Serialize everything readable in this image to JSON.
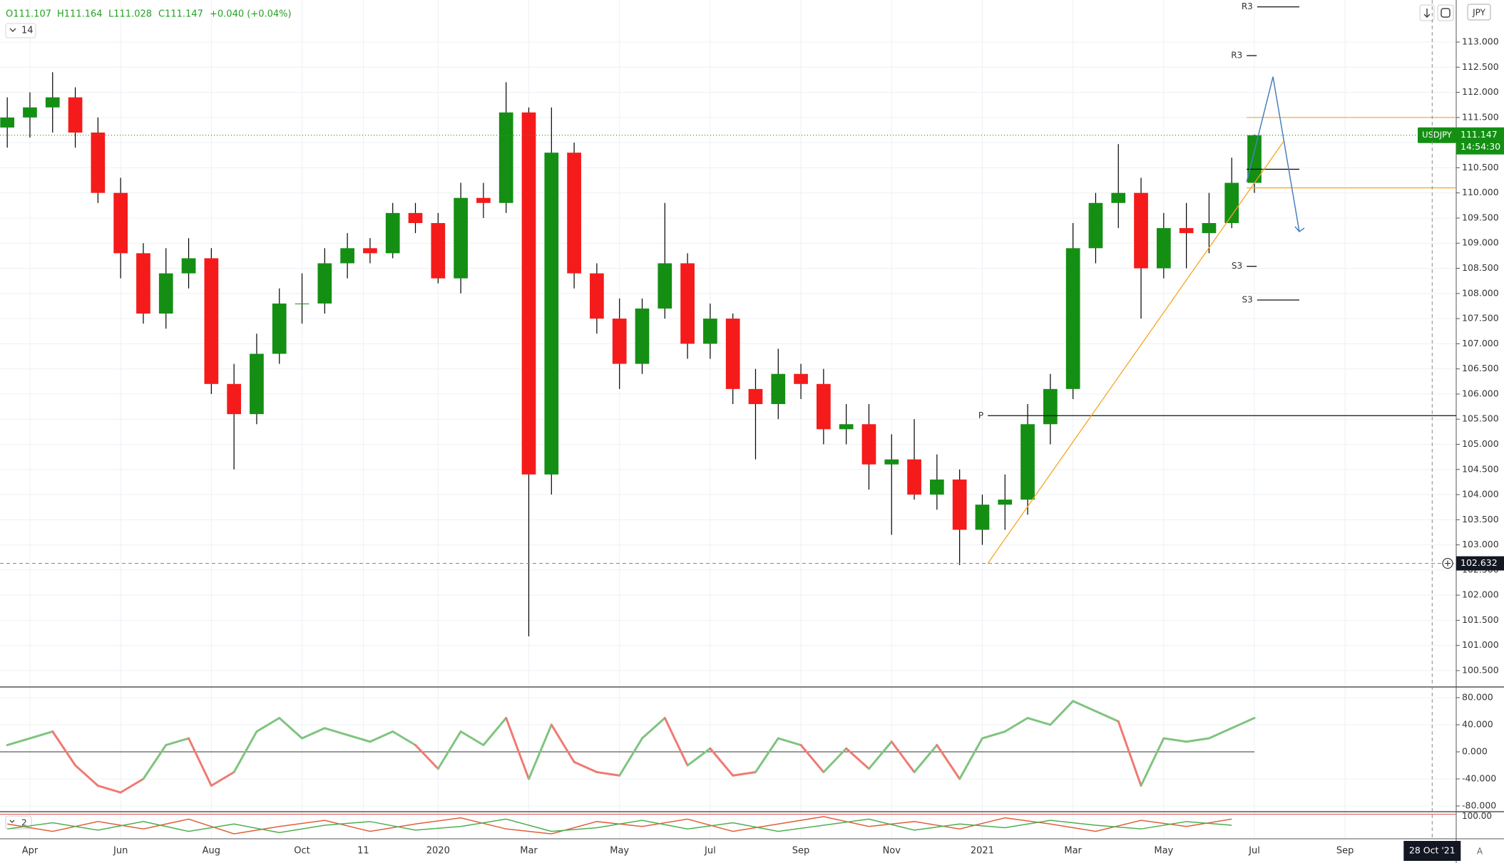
{
  "chart_data": {
    "type": "candlestick",
    "symbol": "USDJPY",
    "header": [
      "O111.107",
      "H111.164",
      "L111.028",
      "C111.147",
      "+0.040 (+0.04%)"
    ],
    "indicator_label": "14",
    "currency": "JPY",
    "scale_mode": "A",
    "up_color": "#148f14",
    "down_color": "#f51b1b",
    "x": [
      -0.5,
      0,
      0.5,
      1,
      1.5,
      2,
      2.5,
      3,
      3.5,
      4,
      4.5,
      5,
      5.5,
      6,
      6.5,
      7,
      7.5,
      8,
      8.5,
      9,
      9.5,
      10,
      10.5,
      11,
      11.5,
      12,
      12.5,
      13,
      13.5,
      14,
      14.5,
      15,
      15.5,
      16,
      16.5,
      17,
      17.5,
      18,
      18.5,
      19,
      19.5,
      20,
      20.5,
      21,
      21.5,
      22,
      22.5,
      23,
      23.5,
      24,
      24.5,
      25,
      25.5,
      26,
      26.5,
      27
    ],
    "open": [
      111.3,
      111.5,
      111.7,
      111.9,
      111.2,
      110.0,
      108.8,
      107.6,
      108.4,
      108.7,
      106.2,
      105.6,
      106.8,
      107.8,
      107.8,
      108.6,
      108.9,
      108.8,
      109.6,
      109.4,
      108.3,
      109.9,
      109.8,
      111.6,
      104.4,
      110.8,
      108.4,
      107.5,
      106.6,
      107.7,
      108.6,
      107.0,
      107.5,
      106.1,
      105.8,
      106.4,
      106.2,
      105.3,
      105.4,
      104.6,
      104.7,
      104.0,
      104.3,
      103.3,
      103.8,
      103.9,
      105.4,
      106.1,
      108.9,
      109.8,
      110.0,
      108.5,
      109.3,
      109.2,
      109.4,
      110.2
    ],
    "high": [
      111.9,
      112.0,
      112.4,
      112.1,
      111.5,
      110.3,
      109.0,
      108.9,
      109.1,
      108.9,
      106.6,
      107.2,
      108.1,
      108.4,
      108.9,
      109.2,
      109.1,
      109.8,
      109.8,
      109.6,
      110.2,
      110.2,
      112.2,
      111.7,
      111.7,
      111.0,
      108.6,
      107.9,
      107.9,
      109.8,
      108.8,
      107.8,
      107.6,
      106.5,
      106.9,
      106.6,
      106.5,
      105.8,
      105.8,
      105.2,
      105.5,
      104.8,
      104.5,
      104.0,
      104.4,
      105.8,
      106.4,
      109.4,
      110.0,
      110.97,
      110.3,
      109.6,
      109.8,
      110.0,
      110.7,
      111.16
    ],
    "low": [
      110.9,
      111.1,
      111.2,
      110.9,
      109.8,
      108.3,
      107.4,
      107.3,
      108.1,
      106.0,
      104.5,
      105.4,
      106.6,
      107.4,
      107.6,
      108.3,
      108.6,
      108.7,
      109.2,
      108.2,
      108.0,
      109.5,
      109.6,
      101.18,
      104.0,
      108.1,
      107.2,
      106.1,
      106.4,
      107.5,
      106.7,
      106.7,
      105.8,
      104.7,
      105.5,
      105.9,
      105.0,
      105.0,
      104.1,
      103.2,
      103.9,
      103.7,
      102.6,
      103.0,
      103.3,
      103.6,
      105.0,
      105.9,
      108.6,
      109.3,
      107.5,
      108.3,
      108.5,
      108.8,
      109.3,
      110.0
    ],
    "close": [
      111.5,
      111.7,
      111.9,
      111.2,
      110.0,
      108.8,
      107.6,
      108.4,
      108.7,
      106.2,
      105.6,
      106.8,
      107.8,
      107.8,
      108.6,
      108.9,
      108.8,
      109.6,
      109.4,
      108.3,
      109.9,
      109.8,
      111.6,
      104.4,
      110.8,
      108.4,
      107.5,
      106.6,
      107.7,
      108.6,
      107.0,
      107.5,
      106.1,
      105.8,
      106.4,
      106.2,
      105.3,
      105.4,
      104.6,
      104.7,
      104.0,
      104.3,
      103.3,
      103.8,
      103.9,
      105.4,
      106.1,
      108.9,
      109.8,
      110.0,
      108.5,
      109.3,
      109.2,
      109.4,
      110.2,
      111.147
    ],
    "xlim": [
      -0.66,
      31.45
    ],
    "xticks": [
      {
        "value": 0,
        "label": "Apr"
      },
      {
        "value": 2,
        "label": "Jun"
      },
      {
        "value": 4,
        "label": "Aug"
      },
      {
        "value": 6,
        "label": "Oct"
      },
      {
        "value": 7.35,
        "label": "11"
      },
      {
        "value": 9,
        "label": "2020"
      },
      {
        "value": 11,
        "label": "Mar"
      },
      {
        "value": 13,
        "label": "May"
      },
      {
        "value": 15,
        "label": "Jul"
      },
      {
        "value": 17,
        "label": "Sep"
      },
      {
        "value": 19,
        "label": "Nov"
      },
      {
        "value": 21,
        "label": "2021"
      },
      {
        "value": 23,
        "label": "Mar"
      },
      {
        "value": 25,
        "label": "May"
      },
      {
        "value": 27,
        "label": "Jul"
      },
      {
        "value": 29,
        "label": "Sep"
      }
    ],
    "crosshair_time": {
      "value": 30.92,
      "label": "28 Oct '21"
    },
    "ylim": [
      100.174,
      113.836
    ],
    "yticks": [
      {
        "value": 100.5,
        "label": "100.500"
      },
      {
        "value": 101,
        "label": "101.000"
      },
      {
        "value": 101.5,
        "label": "101.500"
      },
      {
        "value": 102,
        "label": "102.000"
      },
      {
        "value": 102.5,
        "label": "102.500"
      },
      {
        "value": 103,
        "label": "103.000"
      },
      {
        "value": 103.5,
        "label": "103.500"
      },
      {
        "value": 104,
        "label": "104.000"
      },
      {
        "value": 104.5,
        "label": "104.500"
      },
      {
        "value": 105,
        "label": "105.000"
      },
      {
        "value": 105.5,
        "label": "105.500"
      },
      {
        "value": 106,
        "label": "106.000"
      },
      {
        "value": 106.5,
        "label": "106.500"
      },
      {
        "value": 107,
        "label": "107.000"
      },
      {
        "value": 107.5,
        "label": "107.500"
      },
      {
        "value": 108,
        "label": "108.000"
      },
      {
        "value": 108.5,
        "label": "108.500"
      },
      {
        "value": 109,
        "label": "109.000"
      },
      {
        "value": 109.5,
        "label": "109.500"
      },
      {
        "value": 110,
        "label": "110.000"
      },
      {
        "value": 110.5,
        "label": "110.500"
      },
      {
        "value": 111,
        "label": "111.000"
      },
      {
        "value": 111.5,
        "label": "111.500"
      },
      {
        "value": 112,
        "label": "112.000"
      },
      {
        "value": 112.5,
        "label": "112.500"
      },
      {
        "value": 113,
        "label": "113.000"
      }
    ],
    "grid": true,
    "last_price": 111.147,
    "countdown": "14:54:30",
    "crosshair_price": 102.632,
    "pivots": [
      {
        "label": "R3",
        "value": 113.7,
        "x": [
          27.06,
          27.99
        ]
      },
      {
        "label": "R3",
        "value": 112.73,
        "x": [
          26.83,
          27.05
        ]
      },
      {
        "label": "S3",
        "value": 108.54,
        "x": [
          26.83,
          27.05
        ]
      },
      {
        "label": "S3",
        "value": 107.87,
        "x": [
          27.06,
          27.99
        ]
      },
      {
        "label": "P",
        "value": 105.57,
        "x": [
          21.12,
          31.45
        ]
      }
    ],
    "levels": [
      {
        "value": 111.5,
        "color": "#f5a623",
        "x": [
          26.83,
          31.45
        ]
      },
      {
        "value": 110.47,
        "color": "#000000",
        "x": [
          26.83,
          27.99
        ]
      },
      {
        "value": 110.1,
        "color": "#f5a623",
        "x": [
          26.83,
          31.45
        ]
      }
    ],
    "trendline": {
      "x": [
        21.12,
        27.64
      ],
      "y": [
        102.63,
        111.02
      ],
      "color": "#f5a623"
    },
    "projection": {
      "x": [
        26.83,
        27.41,
        27.99
      ],
      "y": [
        110.22,
        112.31,
        109.23
      ],
      "color": "#4a7fc0"
    },
    "oscillator": {
      "type": "line",
      "values": [
        10,
        20,
        30,
        -20,
        -50,
        -60,
        -40,
        10,
        20,
        -50,
        -30,
        30,
        50,
        20,
        35,
        25,
        15,
        30,
        10,
        -25,
        30,
        10,
        50,
        -40,
        40,
        -15,
        -30,
        -35,
        20,
        50,
        -20,
        5,
        -35,
        -30,
        20,
        10,
        -30,
        5,
        -25,
        15,
        -30,
        10,
        -40,
        20,
        30,
        50,
        40,
        75,
        60,
        45,
        -50,
        20,
        15,
        20,
        35,
        50
      ],
      "up_color": "#7fc47f",
      "down_color": "#ef7a72",
      "ylim": [
        -88.4,
        95.8
      ],
      "yticks": [
        {
          "value": 80,
          "label": "80.000"
        },
        {
          "value": 40,
          "label": "40.000"
        },
        {
          "value": 0,
          "label": "0.000"
        },
        {
          "value": -40,
          "label": "-40.000"
        },
        {
          "value": -80,
          "label": "-80.000"
        }
      ]
    },
    "stochastic": {
      "type": "line",
      "label": "2",
      "x": [
        -0.5,
        0.5,
        1.5,
        2.5,
        3.5,
        4.5,
        5.5,
        6.5,
        7.5,
        8.5,
        9.5,
        10.5,
        11.5,
        12.5,
        13.5,
        14.5,
        15.5,
        16.5,
        17.5,
        18.5,
        19.5,
        20.5,
        21.5,
        22.5,
        23.5,
        24.5,
        25.5,
        26.5
      ],
      "series": [
        {
          "color": "#e0603a",
          "values": [
            60,
            30,
            70,
            40,
            80,
            20,
            50,
            75,
            30,
            60,
            85,
            40,
            20,
            70,
            50,
            80,
            30,
            60,
            90,
            50,
            70,
            40,
            85,
            60,
            30,
            75,
            50,
            80
          ]
        },
        {
          "color": "#4caf50",
          "values": [
            40,
            65,
            35,
            70,
            30,
            60,
            25,
            55,
            70,
            35,
            50,
            80,
            30,
            45,
            75,
            40,
            65,
            30,
            55,
            80,
            35,
            60,
            45,
            75,
            55,
            40,
            70,
            55
          ]
        }
      ],
      "ylim": [
        0,
        110
      ],
      "yticks": [
        {
          "value": 100,
          "label": "100.00"
        }
      ]
    }
  }
}
